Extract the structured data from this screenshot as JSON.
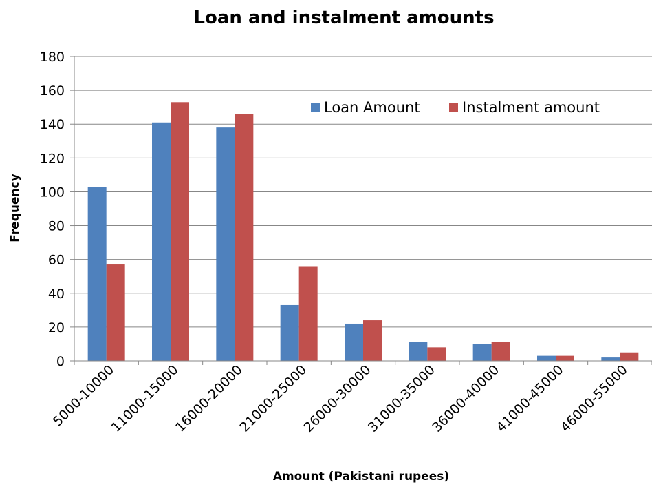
{
  "chart_data": {
    "type": "bar",
    "title": "Loan and instalment amounts",
    "xlabel": "Amount (Pakistani rupees)",
    "ylabel": "Frequency",
    "ylim": [
      0,
      180
    ],
    "yticks": [
      0,
      20,
      40,
      60,
      80,
      100,
      120,
      140,
      160,
      180
    ],
    "grid": true,
    "legend_position": "top-right",
    "categories": [
      "5000-10000",
      "11000-15000",
      "16000-20000",
      "21000-25000",
      "26000-30000",
      "31000-35000",
      "36000-40000",
      "41000-45000",
      "46000-55000"
    ],
    "series": [
      {
        "name": "Loan Amount",
        "color": "#4F81BD",
        "values": [
          103,
          141,
          138,
          33,
          22,
          11,
          10,
          3,
          2
        ]
      },
      {
        "name": "Instalment amount",
        "color": "#C0504D",
        "values": [
          57,
          153,
          146,
          56,
          24,
          8,
          11,
          3,
          5
        ]
      }
    ]
  }
}
